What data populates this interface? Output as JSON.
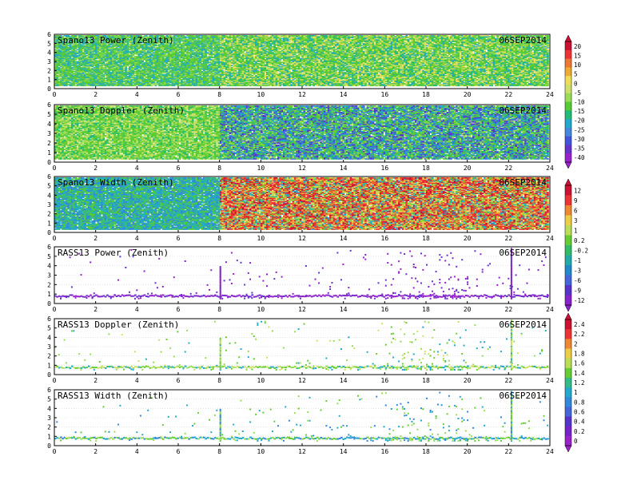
{
  "date": "06SEP2014",
  "chart_data": [
    {
      "type": "heatmap",
      "title": "Spano13 Power (Zenith)",
      "date": "06SEP2014",
      "xlim": [
        0,
        24
      ],
      "ylim": [
        0,
        6
      ],
      "xticks": [
        0,
        2,
        4,
        6,
        8,
        10,
        12,
        14,
        16,
        18,
        20,
        22,
        24
      ],
      "yticks": [
        0,
        1,
        2,
        3,
        4,
        5,
        6
      ],
      "colorbar": {
        "ticks": [
          "20",
          "15",
          "10",
          "5",
          "0",
          "-5",
          "-10",
          "-15",
          "-20",
          "-25",
          "-30",
          "-35",
          "-40"
        ]
      },
      "features": {
        "onset_hour": 8,
        "dense": true
      }
    },
    {
      "type": "heatmap",
      "title": "Spano13 Doppler (Zenith)",
      "date": "06SEP2014",
      "xlim": [
        0,
        24
      ],
      "ylim": [
        0,
        6
      ],
      "xticks": [
        0,
        2,
        4,
        6,
        8,
        10,
        12,
        14,
        16,
        18,
        20,
        22,
        24
      ],
      "yticks": [
        0,
        1,
        2,
        3,
        4,
        5,
        6
      ],
      "colorbar": {
        "ticks": [
          "20",
          "15",
          "10",
          "5",
          "0",
          "-5",
          "-10",
          "-15",
          "-20",
          "-25",
          "-30",
          "-35",
          "-40"
        ]
      },
      "features": {
        "onset_hour": 8,
        "dense": true
      }
    },
    {
      "type": "heatmap",
      "title": "Spano13 Width (Zenith)",
      "date": "06SEP2014",
      "xlim": [
        0,
        24
      ],
      "ylim": [
        0,
        6
      ],
      "xticks": [
        0,
        2,
        4,
        6,
        8,
        10,
        12,
        14,
        16,
        18,
        20,
        22,
        24
      ],
      "yticks": [
        0,
        1,
        2,
        3,
        4,
        5,
        6
      ],
      "colorbar": {
        "ticks": [
          "12",
          "9",
          "6",
          "3",
          "1",
          "0.2",
          "-0.2",
          "-1",
          "-3",
          "-6",
          "-9",
          "-12"
        ]
      },
      "features": {
        "onset_hour": 8,
        "dense": true
      }
    },
    {
      "type": "heatmap",
      "title": "RASS13 Power (Zenith)",
      "date": "06SEP2014",
      "xlim": [
        0,
        24
      ],
      "ylim": [
        0,
        6
      ],
      "xticks": [
        0,
        2,
        4,
        6,
        8,
        10,
        12,
        14,
        16,
        18,
        20,
        22,
        24
      ],
      "yticks": [
        0,
        1,
        2,
        3,
        4,
        5,
        6
      ],
      "colorbar": {
        "ticks": [
          "12",
          "9",
          "6",
          "3",
          "1",
          "0.2",
          "-0.2",
          "-1",
          "-3",
          "-6",
          "-9",
          "-12"
        ]
      },
      "features": {
        "onset_hour": 8,
        "dense": false
      }
    },
    {
      "type": "heatmap",
      "title": "RASS13 Doppler (Zenith)",
      "date": "06SEP2014",
      "xlim": [
        0,
        24
      ],
      "ylim": [
        0,
        6
      ],
      "xticks": [
        0,
        2,
        4,
        6,
        8,
        10,
        12,
        14,
        16,
        18,
        20,
        22,
        24
      ],
      "yticks": [
        0,
        1,
        2,
        3,
        4,
        5,
        6
      ],
      "colorbar": {
        "ticks": [
          "2.4",
          "2.2",
          "2",
          "1.8",
          "1.6",
          "1.4",
          "1.2",
          "1",
          "0.8",
          "0.6",
          "0.4",
          "0.2",
          "0"
        ]
      },
      "features": {
        "onset_hour": 8,
        "dense": false
      }
    },
    {
      "type": "heatmap",
      "title": "RASS13 Width (Zenith)",
      "date": "06SEP2014",
      "xlim": [
        0,
        24
      ],
      "ylim": [
        0,
        6
      ],
      "xticks": [
        0,
        2,
        4,
        6,
        8,
        10,
        12,
        14,
        16,
        18,
        20,
        22,
        24
      ],
      "yticks": [
        0,
        1,
        2,
        3,
        4,
        5,
        6
      ],
      "colorbar": {
        "ticks": [
          "2.4",
          "2.2",
          "2",
          "1.8",
          "1.6",
          "1.4",
          "1.2",
          "1",
          "0.8",
          "0.6",
          "0.4",
          "0.2",
          "0"
        ]
      },
      "features": {
        "onset_hour": 8,
        "dense": false
      }
    }
  ],
  "colors": {
    "frame": "#000000",
    "grid": "#d8d8d8",
    "scale_a": [
      "#cc1133",
      "#ee3333",
      "#ee7733",
      "#eeaa33",
      "#eedd55",
      "#cfe06a",
      "#99dd55",
      "#55cc33",
      "#22bb77",
      "#22aacc",
      "#4488dd",
      "#4455dd",
      "#6633cc",
      "#9922cc"
    ],
    "scale_b": [
      "#cc1133",
      "#ee3333",
      "#ee8833",
      "#eecc44",
      "#bbdd55",
      "#66cc33",
      "#33bb66",
      "#22aaaa",
      "#2288cc",
      "#4466dd",
      "#5533cc",
      "#8822cc"
    ],
    "scale_c": [
      "#cc1133",
      "#ee3333",
      "#ee8833",
      "#eecc44",
      "#bbdd55",
      "#66cc33",
      "#33bb88",
      "#22aacc",
      "#3388dd",
      "#4466dd",
      "#5533cc",
      "#7722cc",
      "#9922cc"
    ]
  }
}
